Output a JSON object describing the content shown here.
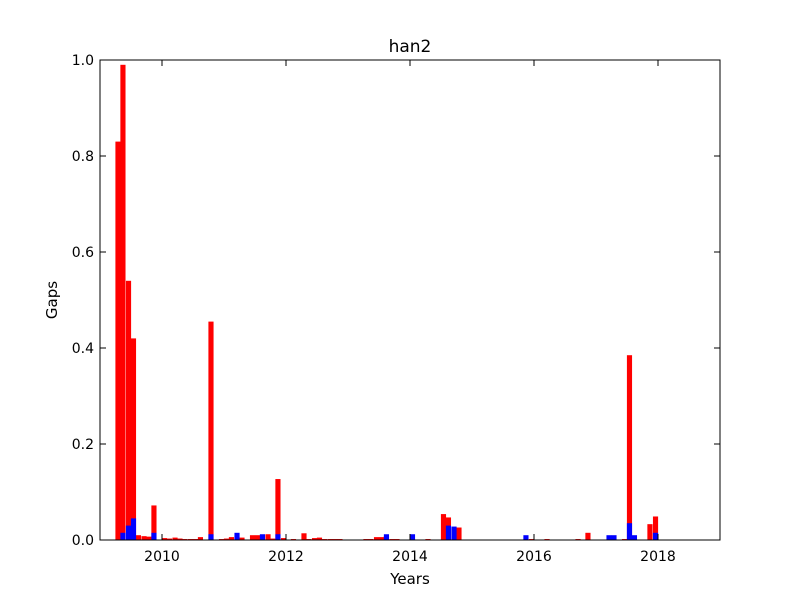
{
  "chart_data": {
    "type": "bar",
    "title": "han2",
    "xlabel": "Years",
    "ylabel": "Gaps",
    "xlim": [
      2009.0,
      2019.0
    ],
    "ylim": [
      0.0,
      1.0
    ],
    "xticks": [
      2010,
      2012,
      2014,
      2016,
      2018
    ],
    "xtick_labels": [
      "2010",
      "2012",
      "2014",
      "2016",
      "2018"
    ],
    "yticks": [
      0.0,
      0.2,
      0.4,
      0.6,
      0.8,
      1.0
    ],
    "ytick_labels": [
      "0.0",
      "0.2",
      "0.4",
      "0.6",
      "0.8",
      "1.0"
    ],
    "bar_width_years": 0.083,
    "grid": false,
    "colors": {
      "red_series": "#ff0000",
      "blue_series": "#0000ff"
    },
    "series": [
      {
        "color": "#ff0000",
        "x": [
          2009.29,
          2009.37,
          2009.46,
          2009.54,
          2009.62,
          2009.71,
          2009.79,
          2009.87,
          2010.04,
          2010.12,
          2010.21,
          2010.29,
          2010.37,
          2010.46,
          2010.54,
          2010.62,
          2010.79,
          2010.96,
          2011.04,
          2011.12,
          2011.21,
          2011.29,
          2011.46,
          2011.54,
          2011.62,
          2011.71,
          2011.79,
          2011.87,
          2011.96,
          2012.12,
          2012.29,
          2012.37,
          2012.46,
          2012.54,
          2012.62,
          2012.71,
          2012.79,
          2012.87,
          2013.29,
          2013.37,
          2013.46,
          2013.54,
          2013.62,
          2013.71,
          2013.79,
          2014.04,
          2014.29,
          2014.54,
          2014.62,
          2014.71,
          2014.79,
          2015.96,
          2016.21,
          2016.71,
          2016.87,
          2017.46,
          2017.54,
          2017.87,
          2017.96
        ],
        "values": [
          0.83,
          0.99,
          0.54,
          0.42,
          0.01,
          0.008,
          0.007,
          0.072,
          0.004,
          0.003,
          0.005,
          0.003,
          0.002,
          0.002,
          0.002,
          0.006,
          0.455,
          0.002,
          0.003,
          0.006,
          0.005,
          0.005,
          0.01,
          0.01,
          0.002,
          0.012,
          0.003,
          0.127,
          0.004,
          0.002,
          0.014,
          0.002,
          0.004,
          0.005,
          0.002,
          0.002,
          0.002,
          0.002,
          0.002,
          0.002,
          0.006,
          0.006,
          0.008,
          0.002,
          0.002,
          0.002,
          0.002,
          0.054,
          0.047,
          0.026,
          0.026,
          0.002,
          0.002,
          0.002,
          0.015,
          0.002,
          0.385,
          0.033,
          0.049
        ]
      },
      {
        "color": "#0000ff",
        "x": [
          2009.37,
          2009.46,
          2009.54,
          2009.87,
          2010.79,
          2011.21,
          2011.62,
          2011.87,
          2013.62,
          2014.04,
          2014.62,
          2014.71,
          2015.87,
          2017.21,
          2017.29,
          2017.54,
          2017.62,
          2017.96
        ],
        "values": [
          0.015,
          0.03,
          0.045,
          0.015,
          0.012,
          0.015,
          0.012,
          0.012,
          0.012,
          0.012,
          0.03,
          0.028,
          0.01,
          0.01,
          0.01,
          0.035,
          0.01,
          0.015
        ]
      }
    ]
  }
}
